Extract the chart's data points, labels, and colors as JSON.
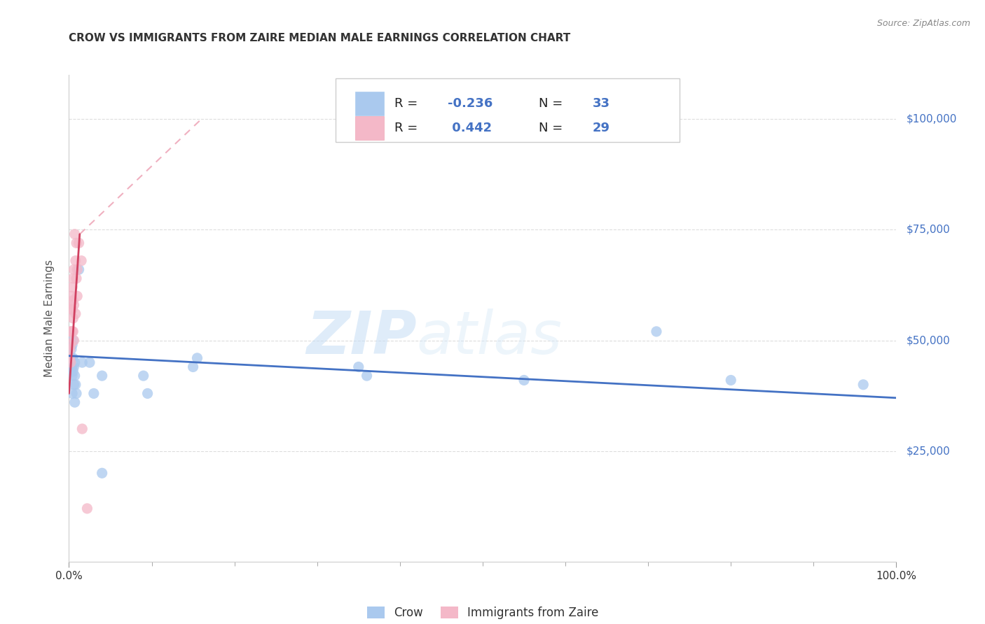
{
  "title": "CROW VS IMMIGRANTS FROM ZAIRE MEDIAN MALE EARNINGS CORRELATION CHART",
  "source_text": "Source: ZipAtlas.com",
  "ylabel": "Median Male Earnings",
  "title_color": "#333333",
  "background_color": "#ffffff",
  "watermark_zip": "ZIP",
  "watermark_atlas": "atlas",
  "crow_color": "#aac9ee",
  "zaire_color": "#f4b8c8",
  "crow_line_color": "#4472c4",
  "zaire_line_color": "#d04060",
  "zaire_dash_color": "#f0b0c0",
  "ytick_labels": [
    "$25,000",
    "$50,000",
    "$75,000",
    "$100,000"
  ],
  "ytick_values": [
    25000,
    50000,
    75000,
    100000
  ],
  "xlim": [
    0.0,
    1.0
  ],
  "ylim": [
    0,
    110000
  ],
  "crow_x": [
    0.003,
    0.003,
    0.003,
    0.004,
    0.004,
    0.004,
    0.004,
    0.005,
    0.005,
    0.005,
    0.006,
    0.006,
    0.007,
    0.007,
    0.007,
    0.008,
    0.009,
    0.012,
    0.016,
    0.025,
    0.03,
    0.04,
    0.04,
    0.09,
    0.095,
    0.15,
    0.155,
    0.35,
    0.36,
    0.55,
    0.71,
    0.8,
    0.96
  ],
  "crow_y": [
    48000,
    44000,
    46000,
    49000,
    44000,
    42000,
    38000,
    46000,
    43000,
    50000,
    44000,
    40000,
    45000,
    42000,
    36000,
    40000,
    38000,
    66000,
    45000,
    45000,
    38000,
    42000,
    20000,
    42000,
    38000,
    44000,
    46000,
    44000,
    42000,
    41000,
    52000,
    41000,
    40000
  ],
  "zaire_x": [
    0.001,
    0.001,
    0.002,
    0.002,
    0.002,
    0.003,
    0.003,
    0.003,
    0.004,
    0.004,
    0.004,
    0.005,
    0.005,
    0.005,
    0.005,
    0.006,
    0.006,
    0.006,
    0.007,
    0.008,
    0.008,
    0.009,
    0.009,
    0.01,
    0.01,
    0.012,
    0.015,
    0.016,
    0.022
  ],
  "zaire_y": [
    48000,
    46000,
    52000,
    49000,
    45000,
    60000,
    57000,
    52000,
    62000,
    57000,
    52000,
    64000,
    59000,
    55000,
    52000,
    66000,
    58000,
    50000,
    74000,
    68000,
    56000,
    72000,
    64000,
    66000,
    60000,
    72000,
    68000,
    30000,
    12000
  ],
  "crow_trend": [
    0.0,
    1.0,
    46500,
    37000
  ],
  "zaire_solid_trend": [
    0.0,
    0.013,
    38000,
    74000
  ],
  "zaire_dash_trend": [
    0.013,
    0.16,
    74000,
    100000
  ],
  "grid_color": "#dddddd",
  "grid_style": "--"
}
